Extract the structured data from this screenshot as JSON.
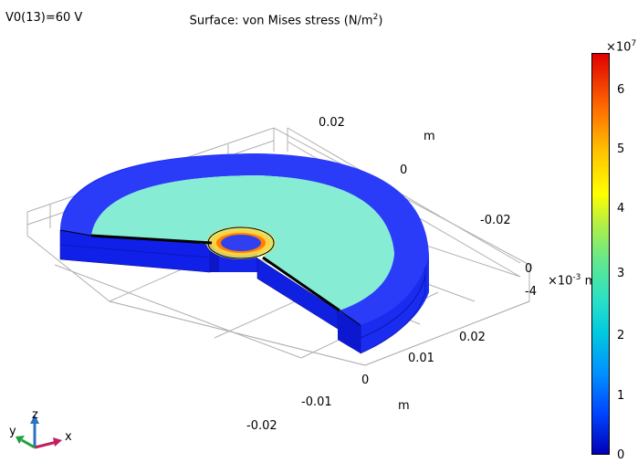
{
  "header": {
    "parameter_label": "V0(13)=60 V",
    "title_prefix": "Surface: von Mises stress (N/m",
    "title_sup": "2",
    "title_suffix": ")"
  },
  "axes": {
    "y_ticks": [
      "0.02",
      "0",
      "-0.02"
    ],
    "y_unit": "m",
    "z_ticks": [
      "0",
      "-4"
    ],
    "z_exponent_base": "×10",
    "z_exponent": "-3",
    "z_unit": "m",
    "x_ticks": [
      "0.02",
      "0.01",
      "0",
      "-0.01",
      "-0.02"
    ],
    "x_unit": "m"
  },
  "colorbar": {
    "exponent_base": "×10",
    "exponent": "7",
    "ticks": [
      "6",
      "5",
      "4",
      "3",
      "2",
      "1",
      "0"
    ],
    "min": 0,
    "max": 6.6,
    "colors": {
      "low": "#0000b8",
      "mid": "#60e890",
      "high": "#e00000"
    }
  },
  "triad": {
    "x_label": "x",
    "y_label": "y",
    "z_label": "z"
  }
}
